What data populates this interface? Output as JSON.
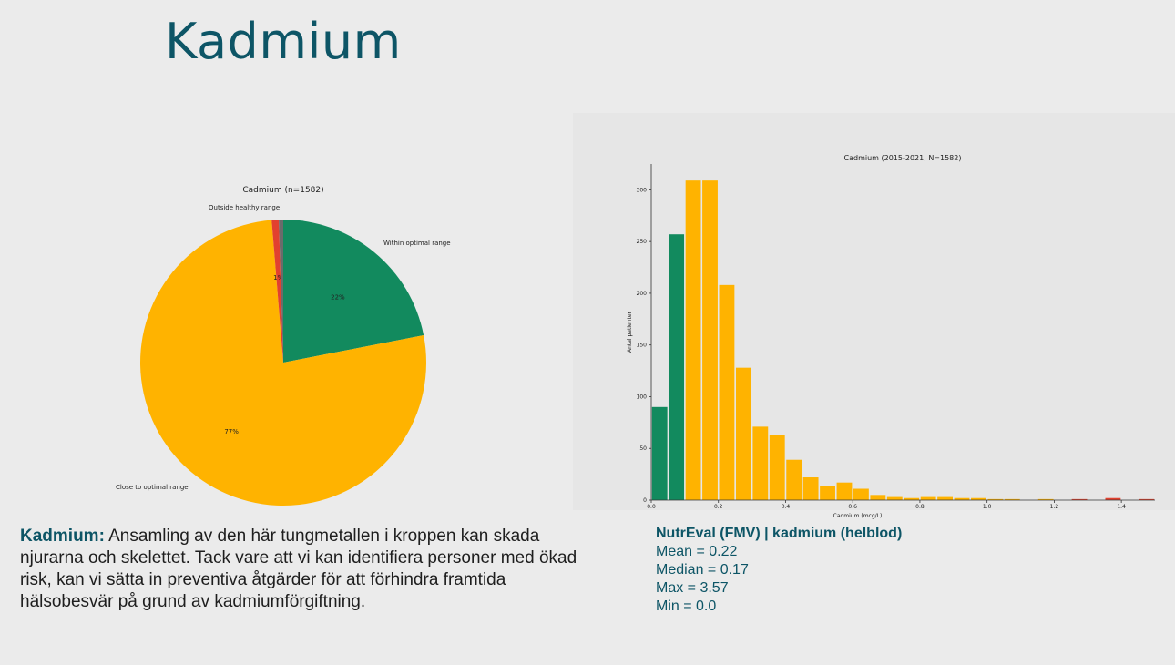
{
  "page": {
    "title": "Kadmium"
  },
  "description": {
    "lead": "Kadmium:",
    "text": " Ansamling av den här tungmetallen i kroppen kan skada njurarna och skelettet. Tack vare att vi kan identifiera personer med ökad risk, kan vi sätta in preventiva åtgärder för att förhindra framtida hälsobesvär på grund av kadmiumförgiftning."
  },
  "stats": {
    "header": "NutrEval (FMV) | kadmium (helblod)",
    "mean": "Mean = 0.22",
    "median": "Median = 0.17",
    "max": "Max = 3.57",
    "min": "Min = 0.0"
  },
  "colors": {
    "green": "#128a5e",
    "yellow": "#ffb300",
    "red": "#e2412f",
    "gray": "#6b6b6b",
    "teal": "#0d5566"
  },
  "chart_data": [
    {
      "type": "pie",
      "title": "Cadmium (n=1582)",
      "slices": [
        {
          "label": "Within optimal range",
          "value": 22,
          "pct_label": "22%",
          "color": "#128a5e"
        },
        {
          "label": "Close to optimal range",
          "value": 77,
          "pct_label": "77%",
          "color": "#ffb300"
        },
        {
          "label": "Outside healthy range",
          "value": 0.8,
          "pct_label": "1%",
          "color": "#e2412f"
        },
        {
          "label": "",
          "value": 0.5,
          "pct_label": "",
          "color": "#6b6b6b"
        }
      ]
    },
    {
      "type": "bar",
      "title": "Cadmium (2015-2021, N=1582)",
      "xlabel": "Cadmium (mcg/L)",
      "ylabel": "Antal patienter",
      "xlim": [
        0,
        1.5
      ],
      "ylim": [
        0,
        325
      ],
      "xticks": [
        0.0,
        0.2,
        0.4,
        0.6,
        0.8,
        1.0,
        1.2,
        1.4
      ],
      "xtick_labels": [
        "0.0",
        "0.2",
        "0.4",
        "0.6",
        "0.8",
        "1.0",
        "1.2",
        "1.4"
      ],
      "yticks": [
        0,
        50,
        100,
        150,
        200,
        250,
        300
      ],
      "ytick_labels": [
        "0",
        "50",
        "100",
        "150",
        "200",
        "250",
        "300"
      ],
      "bin_width": 0.05,
      "bins": [
        {
          "x": 0.0,
          "count": 90,
          "color": "#128a5e"
        },
        {
          "x": 0.05,
          "count": 257,
          "color": "#128a5e"
        },
        {
          "x": 0.1,
          "count": 309,
          "color": "#ffb300"
        },
        {
          "x": 0.15,
          "count": 309,
          "color": "#ffb300"
        },
        {
          "x": 0.2,
          "count": 208,
          "color": "#ffb300"
        },
        {
          "x": 0.25,
          "count": 128,
          "color": "#ffb300"
        },
        {
          "x": 0.3,
          "count": 71,
          "color": "#ffb300"
        },
        {
          "x": 0.35,
          "count": 63,
          "color": "#ffb300"
        },
        {
          "x": 0.4,
          "count": 39,
          "color": "#ffb300"
        },
        {
          "x": 0.45,
          "count": 22,
          "color": "#ffb300"
        },
        {
          "x": 0.5,
          "count": 14,
          "color": "#ffb300"
        },
        {
          "x": 0.55,
          "count": 17,
          "color": "#ffb300"
        },
        {
          "x": 0.6,
          "count": 11,
          "color": "#ffb300"
        },
        {
          "x": 0.65,
          "count": 5,
          "color": "#ffb300"
        },
        {
          "x": 0.7,
          "count": 3,
          "color": "#ffb300"
        },
        {
          "x": 0.75,
          "count": 2,
          "color": "#ffb300"
        },
        {
          "x": 0.8,
          "count": 3,
          "color": "#ffb300"
        },
        {
          "x": 0.85,
          "count": 3,
          "color": "#ffb300"
        },
        {
          "x": 0.9,
          "count": 2,
          "color": "#ffb300"
        },
        {
          "x": 0.95,
          "count": 2,
          "color": "#ffb300"
        },
        {
          "x": 1.0,
          "count": 1,
          "color": "#ffb300"
        },
        {
          "x": 1.05,
          "count": 1,
          "color": "#ffb300"
        },
        {
          "x": 1.1,
          "count": 0,
          "color": "#ffb300"
        },
        {
          "x": 1.15,
          "count": 1,
          "color": "#ffb300"
        },
        {
          "x": 1.2,
          "count": 0,
          "color": "#ffb300"
        },
        {
          "x": 1.25,
          "count": 1,
          "color": "#e2412f"
        },
        {
          "x": 1.3,
          "count": 0,
          "color": "#e2412f"
        },
        {
          "x": 1.35,
          "count": 2,
          "color": "#e2412f"
        },
        {
          "x": 1.4,
          "count": 0,
          "color": "#e2412f"
        },
        {
          "x": 1.45,
          "count": 1,
          "color": "#e2412f"
        }
      ]
    }
  ]
}
